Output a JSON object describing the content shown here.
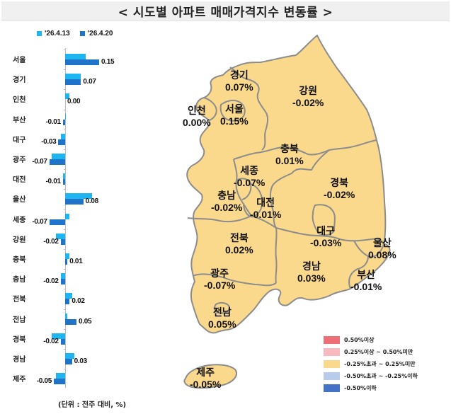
{
  "title": "< 시도별 아파트 매매가격지수 변동률 >",
  "chart_data": {
    "type": "bar",
    "orientation": "horizontal",
    "title": "시도별 아파트 매매가격지수 변동률",
    "unit_note": "(단위 : 전주 대비, %)",
    "categories": [
      "서울",
      "경기",
      "인천",
      "부산",
      "대구",
      "광주",
      "대전",
      "울산",
      "세종",
      "강원",
      "충북",
      "충남",
      "전북",
      "전남",
      "경북",
      "경남",
      "제주"
    ],
    "series": [
      {
        "name": "'26.4.13",
        "color": "#1fb5f0",
        "values": [
          0.09,
          0.07,
          0.02,
          0.0,
          -0.02,
          -0.06,
          -0.01,
          0.12,
          0.02,
          -0.04,
          0.02,
          -0.02,
          0.03,
          0.01,
          -0.06,
          0.04,
          -0.04
        ]
      },
      {
        "name": "'26.4.20",
        "color": "#1f73c8",
        "values": [
          0.15,
          0.07,
          0.0,
          -0.01,
          -0.03,
          -0.07,
          -0.01,
          0.08,
          -0.07,
          -0.02,
          0.01,
          -0.02,
          0.02,
          0.05,
          -0.02,
          0.03,
          -0.05
        ]
      }
    ],
    "data_labels": [
      "0.15",
      "0.07",
      "0.00",
      "-0.01",
      "-0.03",
      "-0.07",
      "-0.01",
      "0.08",
      "-0.07",
      "-0.02",
      "0.01",
      "-0.02",
      "0.02",
      "0.05",
      "-0.02",
      "0.03",
      "-0.05"
    ],
    "legend_position": "top",
    "grid": false
  },
  "legend_top": [
    {
      "label": "'26.4.13",
      "color": "#1fb5f0"
    },
    {
      "label": "'26.4.20",
      "color": "#1f73c8"
    }
  ],
  "unit_note": "(단위 : 전주 대비, %)",
  "map": {
    "fill_color": "#fbd98c",
    "border_color": "#8c8c8c",
    "regions": [
      {
        "name": "경기",
        "value": "0.07%"
      },
      {
        "name": "강원",
        "value": "-0.02%"
      },
      {
        "name": "인천",
        "value": "0.00%"
      },
      {
        "name": "서울",
        "value": "0.15%"
      },
      {
        "name": "충북",
        "value": "0.01%"
      },
      {
        "name": "세종",
        "value": "-0.07%"
      },
      {
        "name": "충남",
        "value": "-0.02%"
      },
      {
        "name": "대전",
        "value": "-0.01%"
      },
      {
        "name": "경북",
        "value": "-0.02%"
      },
      {
        "name": "전북",
        "value": "0.02%"
      },
      {
        "name": "대구",
        "value": "-0.03%"
      },
      {
        "name": "울산",
        "value": "0.08%"
      },
      {
        "name": "광주",
        "value": "-0.07%"
      },
      {
        "name": "경남",
        "value": "0.03%"
      },
      {
        "name": "부산",
        "value": "-0.01%"
      },
      {
        "name": "전남",
        "value": "0.05%"
      },
      {
        "name": "제주",
        "value": "-0.05%"
      }
    ],
    "legend": [
      {
        "label": "0.50%이상",
        "color": "#ee6f76"
      },
      {
        "label": "0.25%이상 ~ 0.50%미만",
        "color": "#f7b9bf"
      },
      {
        "label": "-0.25%초과 ~ 0.25%미만",
        "color": "#fbd98c"
      },
      {
        "label": "-0.50%초과 ~ -0.25%이하",
        "color": "#b9cbea"
      },
      {
        "label": "-0.50%이하",
        "color": "#4472c4"
      }
    ]
  }
}
